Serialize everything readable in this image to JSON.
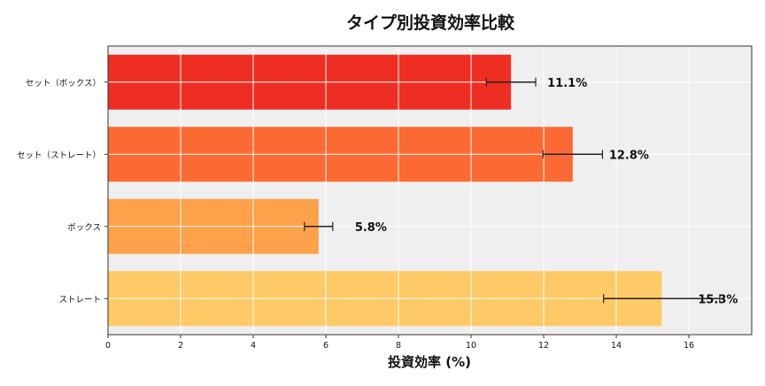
{
  "chart_data": {
    "type": "bar",
    "orientation": "horizontal",
    "title": "タイプ別投資効率比較",
    "xlabel": "投資効率 (%)",
    "ylabel": "",
    "xlim": [
      0,
      17.73
    ],
    "xticks": [
      "0",
      "2",
      "4",
      "6",
      "8",
      "10",
      "12",
      "14",
      "16"
    ],
    "grid": true,
    "categories": [
      "セット（ボックス）",
      "セット（ストレート）",
      "ボックス",
      "ストレート"
    ],
    "values": [
      11.1,
      12.8,
      5.8,
      15.25
    ],
    "errors": [
      0.68,
      0.82,
      0.39,
      1.6
    ],
    "data_labels": [
      "11.1%",
      "12.8%",
      "5.8%",
      "15.3%"
    ],
    "colors": [
      "#ee2e22",
      "#fc6a33",
      "#fda14a",
      "#fdca67"
    ],
    "background": "#efefef"
  }
}
